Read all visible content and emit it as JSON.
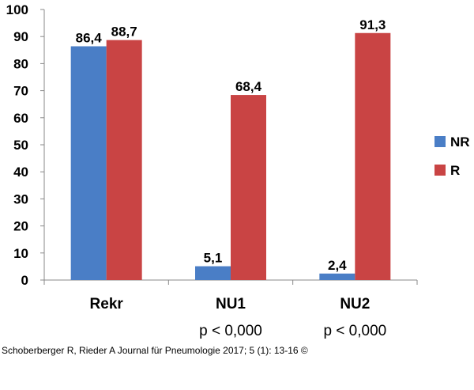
{
  "chart_data": {
    "type": "bar",
    "categories": [
      "Rekr",
      "NU1",
      "NU2"
    ],
    "category_sublabels": [
      "",
      "p < 0,000",
      "p < 0,000"
    ],
    "series": [
      {
        "name": "NR",
        "color": "#4a7ec6",
        "values": [
          86.4,
          5.1,
          2.4
        ],
        "labels": [
          "86,4",
          "5,1",
          "2,4"
        ]
      },
      {
        "name": "R",
        "color": "#c94444",
        "values": [
          88.7,
          68.4,
          91.3
        ],
        "labels": [
          "88,7",
          "68,4",
          "91,3"
        ]
      }
    ],
    "ylim": [
      0,
      100
    ],
    "yticks": [
      0,
      10,
      20,
      30,
      40,
      50,
      60,
      70,
      80,
      90,
      100
    ],
    "grid": false,
    "legend_position": "right"
  },
  "caption": "Schoberberger R, Rieder A Journal für Pneumologie 2017; 5 (1): 13-16 ©"
}
